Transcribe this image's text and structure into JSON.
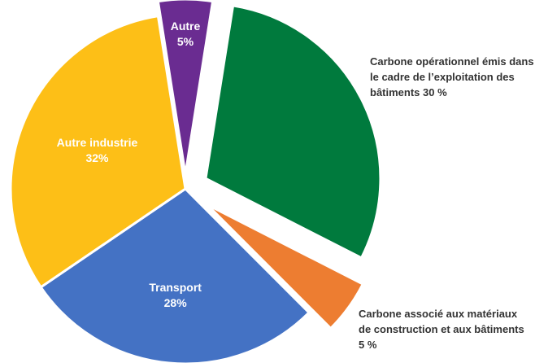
{
  "chart_data": {
    "type": "pie",
    "categories": [
      "Carbone opérationnel émis dans le cadre de l’exploitation des bâtiments",
      "Carbone associé aux matériaux de construction et aux bâtiments",
      "Transport",
      "Autre industrie",
      "Autre"
    ],
    "values": [
      30,
      5,
      28,
      32,
      5
    ],
    "value_labels": [
      "30 %",
      "5 %",
      "28%",
      "32%",
      "5%"
    ],
    "colors": [
      "#007a3d",
      "#ed7d31",
      "#4472c4",
      "#fdbf17",
      "#6a2c91"
    ]
  }
}
